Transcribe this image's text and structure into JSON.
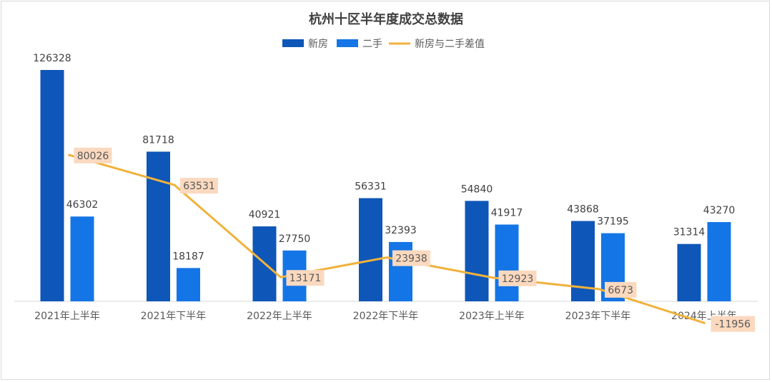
{
  "chart_data": {
    "type": "bar",
    "title": "杭州十区半年度成交总数据",
    "categories": [
      "2021年上半年",
      "2021年下半年",
      "2022年上半年",
      "2022年下半年",
      "2023年上半年",
      "2023年下半年",
      "2024年上半年"
    ],
    "series": [
      {
        "name": "新房",
        "type": "bar",
        "color": "#0e56b8",
        "values": [
          126328,
          81718,
          40921,
          56331,
          54840,
          43868,
          31314
        ]
      },
      {
        "name": "二手",
        "type": "bar",
        "color": "#1475e6",
        "values": [
          46302,
          18187,
          27750,
          32393,
          41917,
          37195,
          43270
        ]
      },
      {
        "name": "新房与二手差值",
        "type": "line",
        "color": "#f0b23c",
        "values": [
          80026,
          63531,
          13171,
          23938,
          12923,
          6673,
          -11956
        ]
      }
    ],
    "legend_position": "top-center",
    "label_box_color": "#fbd9bf",
    "xlabel": "",
    "ylabel": "",
    "ylim": [
      -13000,
      126328
    ]
  }
}
